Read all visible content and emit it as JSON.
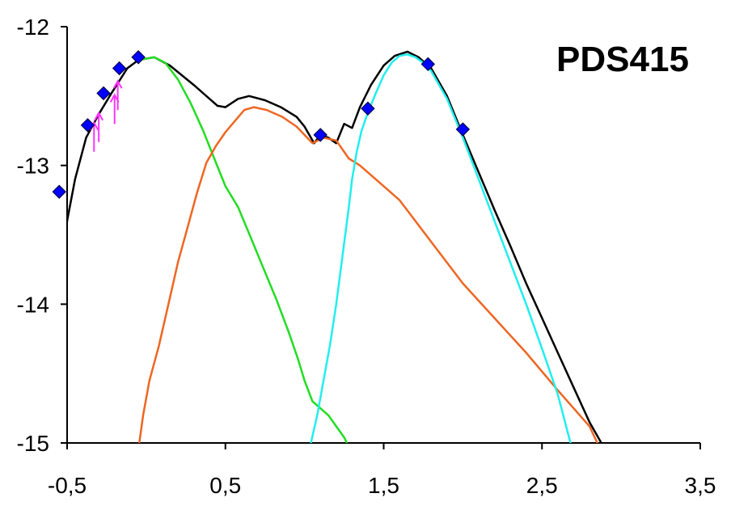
{
  "chart_data": {
    "type": "line",
    "title": "PDS415",
    "xlabel": "",
    "ylabel": "",
    "xlim": [
      -0.5,
      3.5
    ],
    "ylim": [
      -15,
      -12
    ],
    "x_ticks": [
      -0.5,
      0.5,
      1.5,
      2.5,
      3.5
    ],
    "x_tick_labels": [
      "-0,5",
      "0,5",
      "1,5",
      "2,5",
      "3,5"
    ],
    "y_ticks": [
      -12,
      -13,
      -14,
      -15
    ],
    "y_tick_labels": [
      "-12",
      "-13",
      "-14",
      "-15"
    ],
    "grid": false,
    "legend": "none",
    "series": [
      {
        "color": "#000000",
        "kind": "line",
        "x": [
          -0.53,
          -0.5,
          -0.45,
          -0.38,
          -0.3,
          -0.22,
          -0.12,
          -0.05,
          0.05,
          0.15,
          0.3,
          0.45,
          0.5,
          0.58,
          0.65,
          0.75,
          0.85,
          0.95,
          1.0,
          1.03,
          1.06,
          1.1,
          1.15,
          1.2,
          1.25,
          1.3,
          1.35,
          1.42,
          1.5,
          1.57,
          1.65,
          1.72,
          1.8,
          1.9,
          2.0,
          2.1,
          2.2,
          2.3,
          2.4,
          2.5,
          2.6,
          2.7,
          2.8,
          2.9
        ],
        "y": [
          -13.7,
          -13.4,
          -13.1,
          -12.8,
          -12.63,
          -12.48,
          -12.3,
          -12.24,
          -12.22,
          -12.28,
          -12.42,
          -12.57,
          -12.58,
          -12.52,
          -12.5,
          -12.53,
          -12.58,
          -12.65,
          -12.72,
          -12.78,
          -12.84,
          -12.78,
          -12.8,
          -12.84,
          -12.7,
          -12.73,
          -12.58,
          -12.42,
          -12.28,
          -12.21,
          -12.18,
          -12.22,
          -12.3,
          -12.5,
          -12.78,
          -13.05,
          -13.32,
          -13.58,
          -13.85,
          -14.1,
          -14.35,
          -14.6,
          -14.85,
          -15.05
        ]
      },
      {
        "color": "#22dd22",
        "kind": "line",
        "x": [
          -0.05,
          0.05,
          0.12,
          0.2,
          0.28,
          0.36,
          0.43,
          0.5,
          0.58,
          0.66,
          0.74,
          0.82,
          0.9,
          0.96,
          1.0,
          1.05,
          1.1,
          1.15,
          1.2,
          1.25,
          1.28
        ],
        "y": [
          -12.24,
          -12.22,
          -12.26,
          -12.38,
          -12.55,
          -12.75,
          -12.95,
          -13.15,
          -13.3,
          -13.52,
          -13.74,
          -13.96,
          -14.2,
          -14.4,
          -14.55,
          -14.7,
          -14.75,
          -14.8,
          -14.88,
          -14.96,
          -15.03
        ]
      },
      {
        "color": "#ee6622",
        "kind": "line",
        "x": [
          -0.05,
          -0.02,
          0.02,
          0.08,
          0.14,
          0.2,
          0.26,
          0.32,
          0.38,
          0.44,
          0.5,
          0.56,
          0.62,
          0.68,
          0.76,
          0.86,
          0.95,
          1.0,
          1.05,
          1.12,
          1.2,
          1.28,
          1.35,
          1.45,
          1.6,
          1.8,
          2.0,
          2.2,
          2.4,
          2.6,
          2.8,
          2.87
        ],
        "y": [
          -15.05,
          -14.8,
          -14.55,
          -14.3,
          -14.0,
          -13.7,
          -13.45,
          -13.2,
          -12.98,
          -12.86,
          -12.76,
          -12.68,
          -12.6,
          -12.58,
          -12.6,
          -12.65,
          -12.72,
          -12.78,
          -12.84,
          -12.8,
          -12.82,
          -12.95,
          -13.0,
          -13.1,
          -13.25,
          -13.55,
          -13.85,
          -14.1,
          -14.35,
          -14.62,
          -14.88,
          -15.05
        ]
      },
      {
        "color": "#22eeee",
        "kind": "line",
        "x": [
          1.04,
          1.08,
          1.12,
          1.16,
          1.2,
          1.24,
          1.28,
          1.3,
          1.33,
          1.36,
          1.4,
          1.45,
          1.5,
          1.55,
          1.6,
          1.65,
          1.7,
          1.75,
          1.8,
          1.9,
          2.0,
          2.1,
          2.2,
          2.3,
          2.4,
          2.5,
          2.6,
          2.68
        ],
        "y": [
          -15.0,
          -14.8,
          -14.55,
          -14.3,
          -14.0,
          -13.65,
          -13.3,
          -13.1,
          -12.9,
          -12.75,
          -12.62,
          -12.48,
          -12.35,
          -12.26,
          -12.21,
          -12.2,
          -12.22,
          -12.26,
          -12.32,
          -12.52,
          -12.8,
          -13.1,
          -13.4,
          -13.7,
          -14.0,
          -14.32,
          -14.65,
          -15.0
        ]
      },
      {
        "color": "#0000ff",
        "kind": "markers",
        "x": [
          -0.55,
          -0.37,
          -0.27,
          -0.17,
          -0.05,
          1.1,
          1.4,
          1.78,
          2.0
        ],
        "y": [
          -13.19,
          -12.71,
          -12.48,
          -12.3,
          -12.22,
          -12.78,
          -12.59,
          -12.27,
          -12.74
        ]
      },
      {
        "color": "#ff33ff",
        "kind": "upper-limit-arrows",
        "x": [
          -0.33,
          -0.3,
          -0.2,
          -0.18
        ],
        "y": [
          -12.75,
          -12.68,
          -12.55,
          -12.45
        ]
      }
    ]
  }
}
